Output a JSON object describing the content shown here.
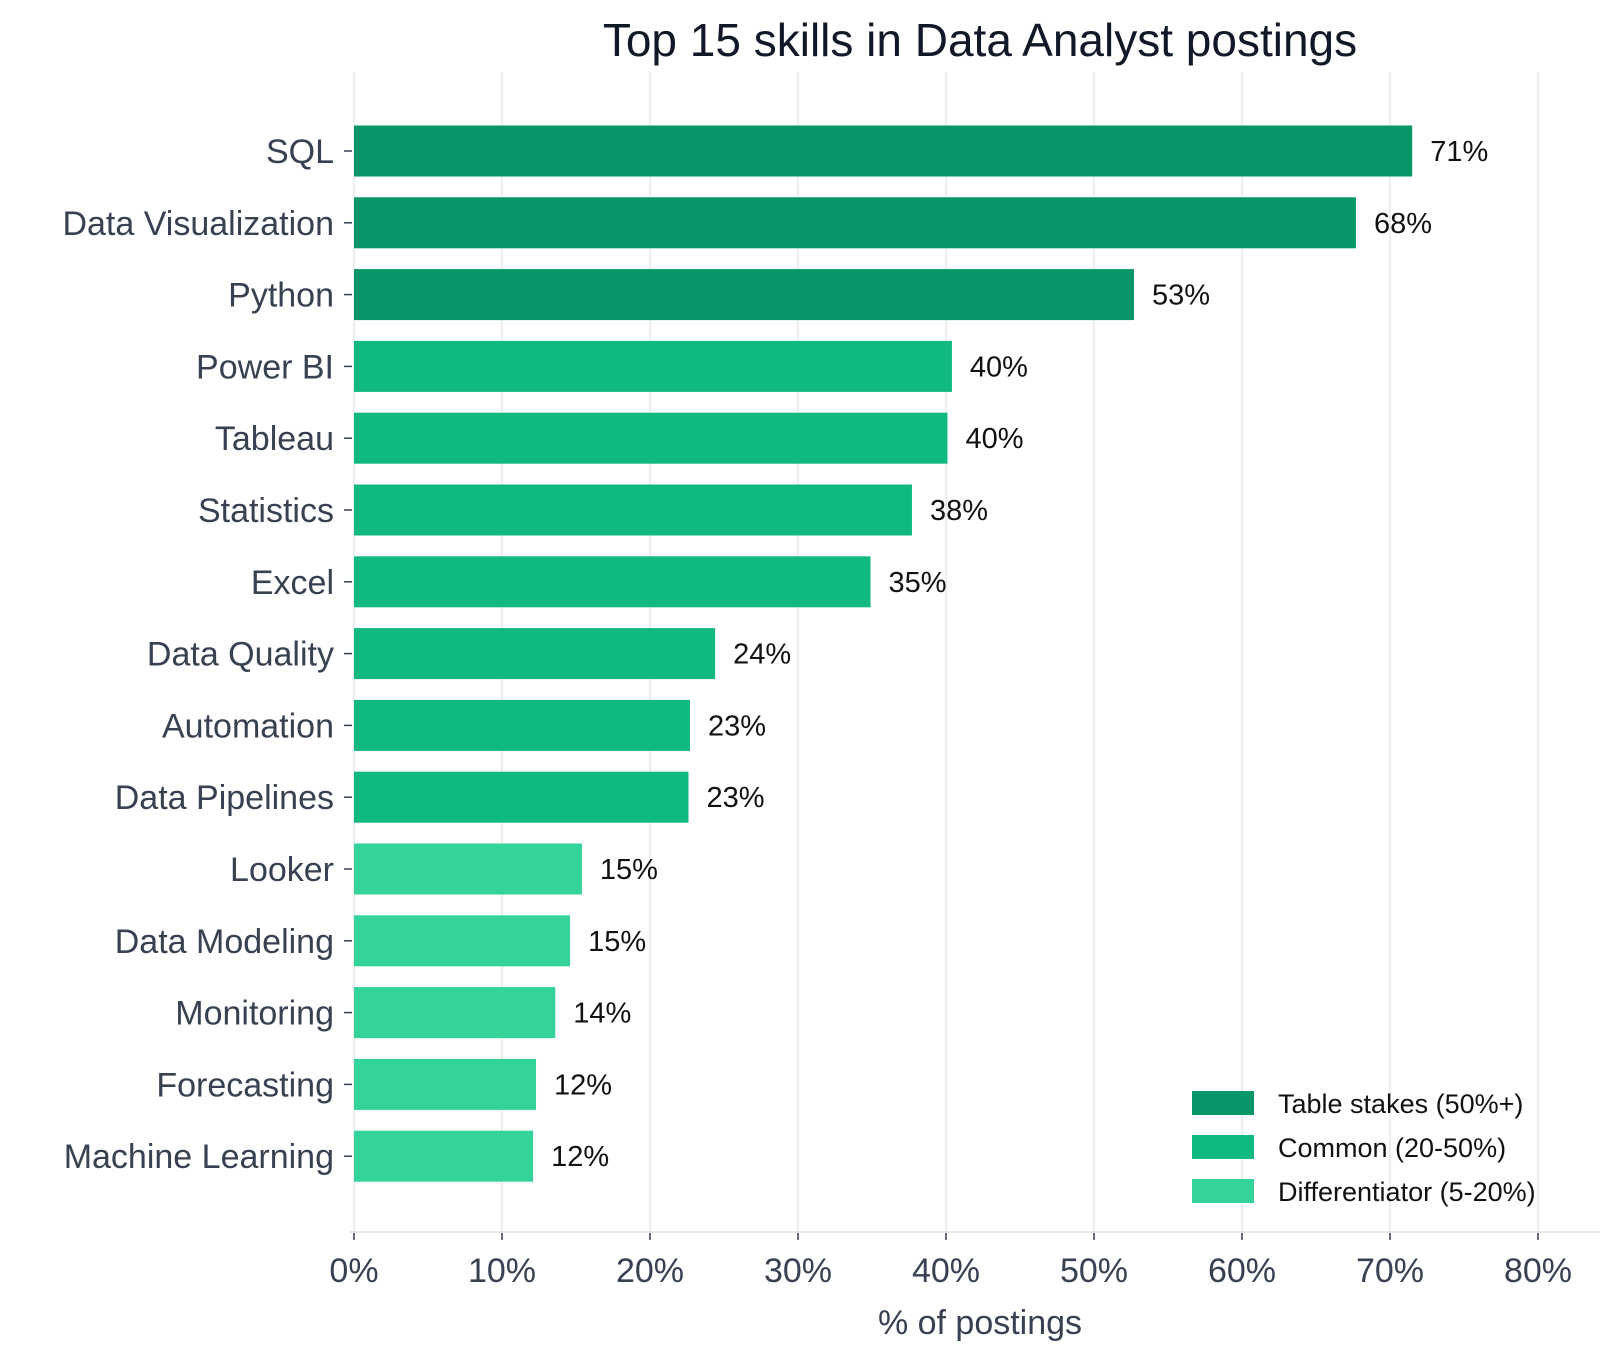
{
  "chart_data": {
    "type": "bar",
    "orientation": "horizontal",
    "title": "Top 15 skills in Data Analyst postings",
    "xlabel": "% of postings",
    "ylabel": "",
    "xlim": [
      0,
      80
    ],
    "x_ticks": [
      0,
      10,
      20,
      30,
      40,
      50,
      60,
      70,
      80
    ],
    "x_tick_labels": [
      "0%",
      "10%",
      "20%",
      "30%",
      "40%",
      "50%",
      "60%",
      "70%",
      "80%"
    ],
    "grid": "vertical",
    "legend_position": "bottom-right",
    "categories": [
      "SQL",
      "Data Visualization",
      "Python",
      "Power BI",
      "Tableau",
      "Statistics",
      "Excel",
      "Data Quality",
      "Automation",
      "Data Pipelines",
      "Looker",
      "Data Modeling",
      "Monitoring",
      "Forecasting",
      "Machine Learning"
    ],
    "values": [
      71.5,
      67.7,
      52.7,
      40.4,
      40.1,
      37.7,
      34.9,
      24.4,
      22.7,
      22.6,
      15.4,
      14.6,
      13.6,
      12.3,
      12.1
    ],
    "value_labels": [
      "71%",
      "68%",
      "53%",
      "40%",
      "40%",
      "38%",
      "35%",
      "24%",
      "23%",
      "23%",
      "15%",
      "15%",
      "14%",
      "12%",
      "12%"
    ],
    "groups": [
      "table_stakes",
      "table_stakes",
      "table_stakes",
      "common",
      "common",
      "common",
      "common",
      "common",
      "common",
      "common",
      "differentiator",
      "differentiator",
      "differentiator",
      "differentiator",
      "differentiator"
    ],
    "legend": [
      {
        "key": "table_stakes",
        "label": "Table stakes (50%+)",
        "color": "#059669"
      },
      {
        "key": "common",
        "label": "Common (20-50%)",
        "color": "#10b981"
      },
      {
        "key": "differentiator",
        "label": "Differentiator (5-20%)",
        "color": "#34d399"
      }
    ]
  }
}
